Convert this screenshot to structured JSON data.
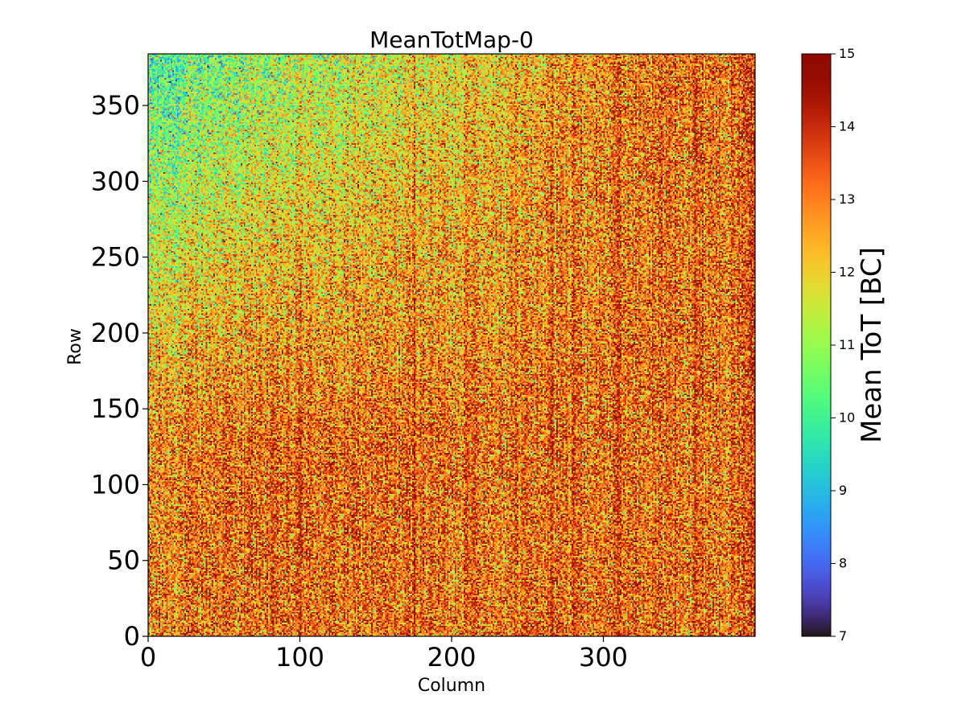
{
  "chart_data": {
    "type": "heatmap",
    "title": "MeanTotMap-0",
    "xlabel": "Column",
    "ylabel": "Row",
    "x_range": [
      0,
      400
    ],
    "y_range": [
      0,
      384
    ],
    "x_ticks": [
      0,
      100,
      200,
      300
    ],
    "y_ticks": [
      0,
      50,
      100,
      150,
      200,
      250,
      300,
      350
    ],
    "colorbar": {
      "label": "Mean ToT [BC]",
      "range": [
        7,
        15
      ],
      "ticks": [
        7,
        8,
        9,
        10,
        11,
        12,
        13,
        14,
        15
      ],
      "colormap": "turbo"
    },
    "description": "Per-pixel mean ToT on a 400 x 384 matrix; most values 11-15 BC, lower values (about 10-11) toward the upper-left, vertical darker-red stripes near columns 100, 175, 215, 265, 280, 310, 360",
    "value_model": {
      "base_mean": 13.2,
      "upper_left_low_value": 11.0,
      "noise_sigma": 1.1,
      "stripe_columns": [
        100,
        175,
        215,
        265,
        280,
        310,
        360
      ],
      "stripe_boost": 0.8
    }
  }
}
